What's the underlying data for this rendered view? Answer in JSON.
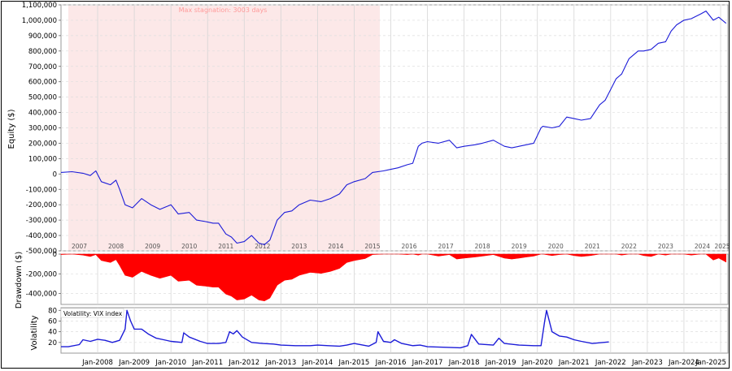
{
  "chart_data": {
    "type": "line",
    "charts": [
      {
        "id": "equity",
        "type": "line",
        "ylabel": "Equity ($)",
        "ylim": [
          -500000,
          1100000
        ],
        "y_ticks": [
          {
            "v": 1100000,
            "label": "1,100,000"
          },
          {
            "v": 1000000,
            "label": "1,000,000"
          },
          {
            "v": 900000,
            "label": "900,000"
          },
          {
            "v": 800000,
            "label": "800,000"
          },
          {
            "v": 700000,
            "label": "700,000"
          },
          {
            "v": 600000,
            "label": "600,000"
          },
          {
            "v": 500000,
            "label": "500,000"
          },
          {
            "v": 400000,
            "label": "400,000"
          },
          {
            "v": 300000,
            "label": "300,000"
          },
          {
            "v": 200000,
            "label": "200,000"
          },
          {
            "v": 100000,
            "label": "100,000"
          },
          {
            "v": 0,
            "label": "0"
          },
          {
            "v": -100000,
            "label": "-100,000"
          },
          {
            "v": -200000,
            "label": "-200,000"
          },
          {
            "v": -300000,
            "label": "-300,000"
          },
          {
            "v": -400000,
            "label": "-400,000"
          },
          {
            "v": -500000,
            "label": "-500,000"
          }
        ],
        "year_labels": [
          "2007",
          "2008",
          "2009",
          "2010",
          "2011",
          "2012",
          "2013",
          "2014",
          "2015",
          "2016",
          "2017",
          "2018",
          "2019",
          "2020",
          "2021",
          "2022",
          "2023",
          "2024",
          "2025"
        ],
        "annotation": "Max stagnation: 3003 days",
        "highlight_range": [
          2007.2,
          2015.7
        ],
        "color": "#1c1cd8",
        "series": [
          {
            "x": [
              2007.0,
              2007.3,
              2007.6,
              2007.8,
              2007.95,
              2008.1,
              2008.35,
              2008.5,
              2008.6,
              2008.75,
              2008.95,
              2009.2,
              2009.45,
              2009.7,
              2010.0,
              2010.2,
              2010.5,
              2010.7,
              2010.95,
              2011.15,
              2011.3,
              2011.5,
              2011.65,
              2011.8,
              2012.0,
              2012.2,
              2012.4,
              2012.55,
              2012.7,
              2012.9,
              2013.1,
              2013.3,
              2013.5,
              2013.8,
              2014.1,
              2014.35,
              2014.6,
              2014.8,
              2015.0,
              2015.3,
              2015.5,
              2015.8,
              2016.0,
              2016.2,
              2016.45,
              2016.6,
              2016.75,
              2016.85,
              2017.0,
              2017.3,
              2017.6,
              2017.8,
              2018.0,
              2018.3,
              2018.5,
              2018.8,
              2019.1,
              2019.3,
              2019.5,
              2019.7,
              2019.9,
              2020.1,
              2020.15,
              2020.4,
              2020.6,
              2020.8,
              2021.0,
              2021.2,
              2021.45,
              2021.7,
              2021.85,
              2022.0,
              2022.15,
              2022.3,
              2022.5,
              2022.75,
              2022.9,
              2023.1,
              2023.3,
              2023.5,
              2023.65,
              2023.8,
              2024.0,
              2024.2,
              2024.45,
              2024.6,
              2024.8,
              2024.95,
              2025.15
            ],
            "y": [
              10000,
              15000,
              5000,
              -10000,
              20000,
              -50000,
              -70000,
              -40000,
              -100000,
              -200000,
              -220000,
              -160000,
              -200000,
              -230000,
              -200000,
              -260000,
              -250000,
              -300000,
              -310000,
              -320000,
              -320000,
              -390000,
              -410000,
              -450000,
              -440000,
              -400000,
              -450000,
              -460000,
              -430000,
              -300000,
              -250000,
              -240000,
              -200000,
              -170000,
              -180000,
              -160000,
              -130000,
              -70000,
              -50000,
              -30000,
              10000,
              20000,
              30000,
              40000,
              60000,
              70000,
              180000,
              200000,
              210000,
              200000,
              220000,
              170000,
              180000,
              190000,
              200000,
              220000,
              180000,
              170000,
              180000,
              190000,
              200000,
              300000,
              310000,
              300000,
              310000,
              370000,
              360000,
              350000,
              360000,
              450000,
              480000,
              550000,
              620000,
              650000,
              750000,
              800000,
              800000,
              810000,
              850000,
              860000,
              930000,
              970000,
              1000000,
              1010000,
              1040000,
              1060000,
              1000000,
              1020000,
              980000
            ]
          }
        ]
      },
      {
        "id": "drawdown",
        "type": "area",
        "ylabel": "Drawdown ($)",
        "ylim": [
          -510000,
          0
        ],
        "y_ticks": [
          {
            "v": 0,
            "label": "0"
          },
          {
            "v": -200000,
            "label": "-200,000"
          },
          {
            "v": -400000,
            "label": "-400,000"
          }
        ],
        "color": "#ff0000",
        "series": [
          {
            "x": [
              2007.0,
              2007.3,
              2007.6,
              2007.8,
              2007.95,
              2008.1,
              2008.35,
              2008.5,
              2008.6,
              2008.75,
              2008.95,
              2009.2,
              2009.45,
              2009.7,
              2010.0,
              2010.2,
              2010.5,
              2010.7,
              2010.95,
              2011.15,
              2011.3,
              2011.5,
              2011.65,
              2011.8,
              2012.0,
              2012.2,
              2012.4,
              2012.55,
              2012.7,
              2012.9,
              2013.1,
              2013.3,
              2013.5,
              2013.8,
              2014.1,
              2014.35,
              2014.6,
              2014.8,
              2015.0,
              2015.3,
              2015.5,
              2015.8,
              2016.0,
              2016.2,
              2016.45,
              2016.6,
              2016.75,
              2016.85,
              2017.0,
              2017.3,
              2017.6,
              2017.8,
              2018.0,
              2018.3,
              2018.5,
              2018.8,
              2019.1,
              2019.3,
              2019.5,
              2019.7,
              2019.9,
              2020.1,
              2020.15,
              2020.4,
              2020.6,
              2020.8,
              2021.0,
              2021.2,
              2021.45,
              2021.7,
              2021.85,
              2022.0,
              2022.15,
              2022.3,
              2022.5,
              2022.75,
              2022.9,
              2023.1,
              2023.3,
              2023.5,
              2023.65,
              2023.8,
              2024.0,
              2024.2,
              2024.45,
              2024.6,
              2024.8,
              2024.95,
              2025.15
            ],
            "y": [
              -5000,
              0,
              -10000,
              -25000,
              -5000,
              -65000,
              -85000,
              -55000,
              -115000,
              -215000,
              -235000,
              -175000,
              -215000,
              -245000,
              -215000,
              -275000,
              -265000,
              -315000,
              -325000,
              -335000,
              -335000,
              -405000,
              -425000,
              -465000,
              -455000,
              -415000,
              -465000,
              -475000,
              -445000,
              -315000,
              -265000,
              -255000,
              -215000,
              -185000,
              -195000,
              -175000,
              -145000,
              -85000,
              -65000,
              -45000,
              -5000,
              0,
              0,
              0,
              -5000,
              0,
              -10000,
              0,
              0,
              -20000,
              -5000,
              -50000,
              -40000,
              -30000,
              -20000,
              -5000,
              -40000,
              -50000,
              -40000,
              -30000,
              -20000,
              0,
              0,
              -15000,
              -5000,
              0,
              -15000,
              -25000,
              -15000,
              0,
              0,
              0,
              0,
              -10000,
              0,
              0,
              -15000,
              -25000,
              0,
              -10000,
              0,
              0,
              0,
              -10000,
              0,
              0,
              -60000,
              -40000,
              -80000
            ]
          }
        ]
      },
      {
        "id": "volatility",
        "type": "line",
        "ylabel": "Volatility",
        "legend": "Volatility: VIX index",
        "ylim": [
          0,
          85
        ],
        "y_ticks": [
          {
            "v": 80,
            "label": "80"
          },
          {
            "v": 60,
            "label": "60"
          },
          {
            "v": 40,
            "label": "40"
          },
          {
            "v": 20,
            "label": "20"
          }
        ],
        "x_tick_labels": [
          "Jan-2008",
          "Jan-2009",
          "Jan-2010",
          "Jan-2011",
          "Jan-2012",
          "Jan-2013",
          "Jan-2014",
          "Jan-2015",
          "Jan-2016",
          "Jan-2017",
          "Jan-2018",
          "Jan-2019",
          "Jan-2020",
          "Jan-2021",
          "Jan-2022",
          "Jan-2023",
          "Jan-2024",
          "Jan-2025"
        ],
        "color": "#1c1cd8",
        "series": [
          {
            "x": [
              2007.0,
              2007.2,
              2007.5,
              2007.6,
              2007.8,
              2008.0,
              2008.2,
              2008.4,
              2008.6,
              2008.75,
              2008.8,
              2008.9,
              2009.0,
              2009.2,
              2009.4,
              2009.6,
              2009.8,
              2010.0,
              2010.3,
              2010.35,
              2010.5,
              2010.8,
              2011.0,
              2011.3,
              2011.5,
              2011.6,
              2011.7,
              2011.8,
              2011.95,
              2012.2,
              2012.5,
              2012.8,
              2013.0,
              2013.4,
              2013.8,
              2014.0,
              2014.3,
              2014.6,
              2014.8,
              2015.0,
              2015.4,
              2015.6,
              2015.65,
              2015.8,
              2016.0,
              2016.1,
              2016.3,
              2016.6,
              2016.8,
              2017.0,
              2017.5,
              2017.9,
              2018.1,
              2018.2,
              2018.4,
              2018.8,
              2018.95,
              2019.1,
              2019.5,
              2019.9,
              2020.1,
              2020.2,
              2020.25,
              2020.4,
              2020.6,
              2020.8,
              2021.0,
              2021.2,
              2021.5,
              2021.8,
              2021.95
            ],
            "y": [
              12,
              12,
              16,
              25,
              22,
              26,
              24,
              20,
              24,
              45,
              80,
              60,
              45,
              45,
              35,
              28,
              25,
              22,
              20,
              38,
              30,
              22,
              18,
              18,
              20,
              40,
              36,
              42,
              30,
              20,
              18,
              17,
              15,
              14,
              14,
              15,
              14,
              13,
              15,
              18,
              13,
              20,
              40,
              22,
              20,
              25,
              18,
              14,
              15,
              12,
              11,
              10,
              14,
              35,
              17,
              15,
              28,
              18,
              15,
              14,
              14,
              60,
              80,
              40,
              32,
              30,
              25,
              22,
              18,
              20,
              21
            ]
          }
        ]
      }
    ]
  }
}
